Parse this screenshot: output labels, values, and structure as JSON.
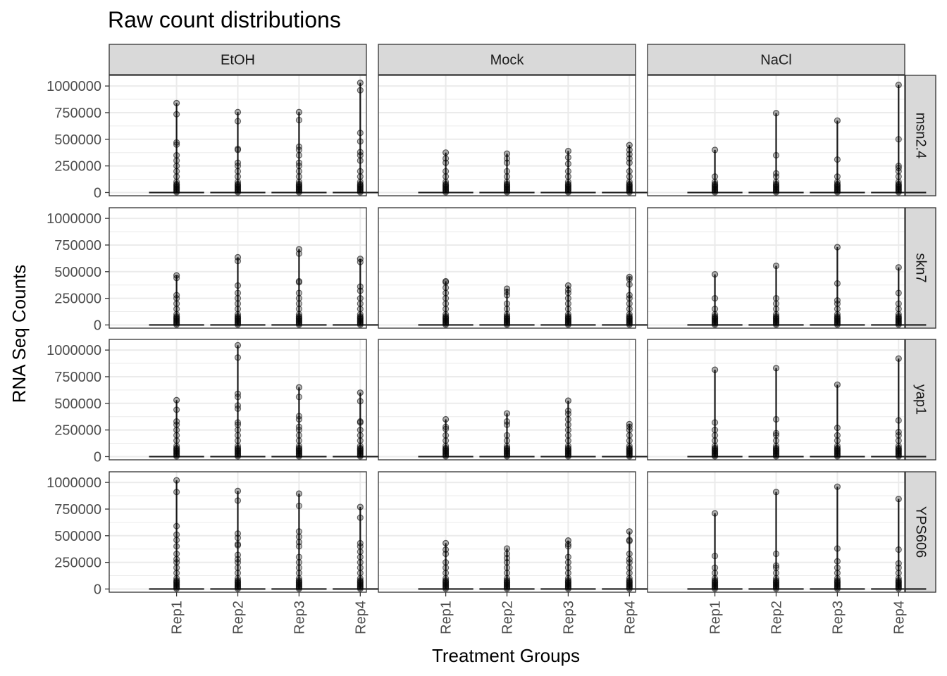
{
  "chart_data": {
    "type": "boxplot",
    "title": "Raw count distributions",
    "xlabel": "Treatment Groups",
    "ylabel": "RNA Seq Counts",
    "facet_columns": [
      "EtOH",
      "Mock",
      "NaCl"
    ],
    "facet_rows": [
      "msn2.4",
      "skn7",
      "yap1",
      "YPS606"
    ],
    "categories": [
      "Rep1",
      "Rep2",
      "Rep3",
      "Rep4"
    ],
    "y_ticks": [
      0,
      250000,
      500000,
      750000,
      1000000
    ],
    "ylim": [
      -30000,
      1100000
    ],
    "grid": true,
    "colors": {
      "strip_fill": "#d9d9d9",
      "grid": "#ebebeb",
      "points": "#000000"
    },
    "panels": [
      {
        "row": "msn2.4",
        "col": "EtOH",
        "max": [
          840000,
          755000,
          755000,
          1030000
        ],
        "outliers": [
          [
            735000,
            470000,
            450000,
            350000,
            300000,
            250000,
            200000,
            150000,
            100000
          ],
          [
            670000,
            410000,
            400000,
            280000,
            250000,
            200000,
            150000,
            100000
          ],
          [
            680000,
            430000,
            400000,
            350000,
            280000,
            250000,
            200000,
            150000,
            100000
          ],
          [
            960000,
            560000,
            480000,
            380000,
            350000,
            300000,
            200000,
            150000,
            100000
          ]
        ]
      },
      {
        "row": "msn2.4",
        "col": "Mock",
        "max": [
          375000,
          365000,
          390000,
          445000
        ],
        "outliers": [
          [
            320000,
            280000,
            200000,
            150000,
            100000
          ],
          [
            320000,
            280000,
            200000,
            150000,
            100000
          ],
          [
            330000,
            270000,
            200000,
            150000,
            100000
          ],
          [
            400000,
            360000,
            320000,
            280000,
            200000,
            150000,
            100000
          ]
        ]
      },
      {
        "row": "msn2.4",
        "col": "NaCl",
        "max": [
          400000,
          745000,
          675000,
          1010000
        ],
        "outliers": [
          [
            150000,
            100000
          ],
          [
            350000,
            180000,
            150000,
            100000
          ],
          [
            310000,
            150000,
            100000
          ],
          [
            500000,
            250000,
            230000,
            200000,
            150000,
            100000
          ]
        ]
      },
      {
        "row": "skn7",
        "col": "EtOH",
        "max": [
          465000,
          635000,
          710000,
          620000
        ],
        "outliers": [
          [
            440000,
            280000,
            250000,
            200000,
            150000,
            100000
          ],
          [
            600000,
            370000,
            300000,
            250000,
            200000,
            150000,
            100000
          ],
          [
            670000,
            410000,
            400000,
            300000,
            250000,
            200000,
            150000,
            100000
          ],
          [
            590000,
            360000,
            320000,
            250000,
            200000,
            150000,
            100000
          ]
        ]
      },
      {
        "row": "skn7",
        "col": "Mock",
        "max": [
          410000,
          340000,
          370000,
          450000
        ],
        "outliers": [
          [
            400000,
            350000,
            300000,
            250000,
            200000,
            150000,
            100000
          ],
          [
            310000,
            280000,
            200000,
            150000,
            100000
          ],
          [
            330000,
            300000,
            250000,
            200000,
            150000,
            100000
          ],
          [
            430000,
            380000,
            280000,
            250000,
            200000,
            150000,
            100000
          ]
        ]
      },
      {
        "row": "skn7",
        "col": "NaCl",
        "max": [
          475000,
          555000,
          730000,
          540000
        ],
        "outliers": [
          [
            250000,
            150000,
            100000
          ],
          [
            250000,
            200000,
            150000,
            100000
          ],
          [
            390000,
            230000,
            200000,
            150000,
            100000
          ],
          [
            300000,
            200000,
            150000,
            100000
          ]
        ]
      },
      {
        "row": "yap1",
        "col": "EtOH",
        "max": [
          530000,
          1045000,
          650000,
          600000
        ],
        "outliers": [
          [
            440000,
            330000,
            300000,
            250000,
            200000,
            150000,
            100000
          ],
          [
            930000,
            590000,
            560000,
            480000,
            450000,
            320000,
            300000,
            250000,
            200000,
            150000,
            100000
          ],
          [
            560000,
            380000,
            350000,
            280000,
            250000,
            200000,
            150000,
            100000
          ],
          [
            520000,
            330000,
            320000,
            250000,
            200000,
            150000,
            100000
          ]
        ]
      },
      {
        "row": "yap1",
        "col": "Mock",
        "max": [
          350000,
          405000,
          525000,
          305000
        ],
        "outliers": [
          [
            280000,
            260000,
            200000,
            150000,
            100000
          ],
          [
            330000,
            300000,
            200000,
            150000,
            100000
          ],
          [
            430000,
            400000,
            350000,
            300000,
            250000,
            200000,
            150000,
            100000
          ],
          [
            280000,
            250000,
            200000,
            150000,
            100000
          ]
        ]
      },
      {
        "row": "yap1",
        "col": "NaCl",
        "max": [
          815000,
          830000,
          675000,
          920000
        ],
        "outliers": [
          [
            320000,
            250000,
            200000,
            150000,
            100000
          ],
          [
            350000,
            220000,
            200000,
            150000,
            100000
          ],
          [
            270000,
            200000,
            150000,
            100000
          ],
          [
            340000,
            230000,
            200000,
            150000,
            100000
          ]
        ]
      },
      {
        "row": "YPS606",
        "col": "EtOH",
        "max": [
          1020000,
          920000,
          895000,
          770000
        ],
        "outliers": [
          [
            910000,
            590000,
            510000,
            460000,
            400000,
            330000,
            280000,
            250000,
            200000,
            150000,
            100000
          ],
          [
            830000,
            520000,
            480000,
            420000,
            410000,
            320000,
            280000,
            250000,
            200000,
            150000,
            100000
          ],
          [
            780000,
            540000,
            490000,
            440000,
            400000,
            300000,
            250000,
            200000,
            150000,
            100000
          ],
          [
            670000,
            430000,
            400000,
            350000,
            300000,
            250000,
            200000,
            150000,
            100000
          ]
        ]
      },
      {
        "row": "YPS606",
        "col": "Mock",
        "max": [
          430000,
          380000,
          455000,
          540000
        ],
        "outliers": [
          [
            370000,
            330000,
            250000,
            200000,
            150000,
            100000
          ],
          [
            330000,
            290000,
            250000,
            200000,
            150000,
            100000
          ],
          [
            420000,
            400000,
            300000,
            250000,
            200000,
            150000,
            100000
          ],
          [
            460000,
            450000,
            330000,
            280000,
            250000,
            200000,
            150000,
            100000
          ]
        ]
      },
      {
        "row": "YPS606",
        "col": "NaCl",
        "max": [
          710000,
          910000,
          960000,
          845000
        ],
        "outliers": [
          [
            310000,
            200000,
            150000,
            100000
          ],
          [
            330000,
            220000,
            200000,
            150000,
            100000
          ],
          [
            380000,
            260000,
            200000,
            150000,
            100000
          ],
          [
            370000,
            240000,
            200000,
            150000,
            100000
          ]
        ]
      }
    ]
  }
}
